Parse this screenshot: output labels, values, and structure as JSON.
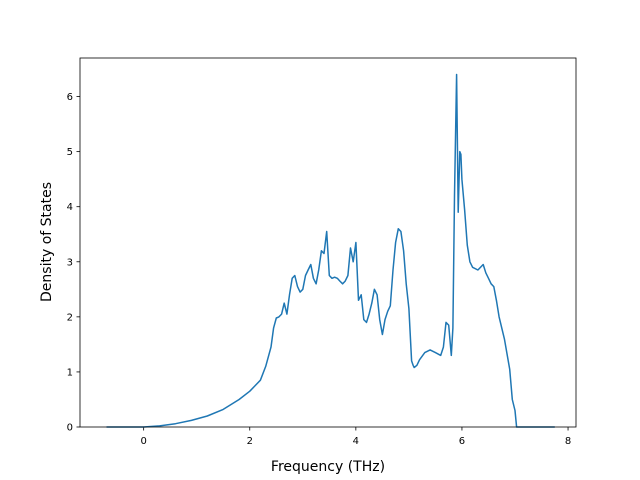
{
  "chart_data": {
    "type": "line",
    "title": "",
    "xlabel": "Frequency (THz)",
    "ylabel": "Density of States",
    "xlim": [
      -1.2,
      8.15
    ],
    "ylim": [
      0,
      6.7
    ],
    "xticks": [
      0,
      2,
      4,
      6,
      8
    ],
    "yticks": [
      0,
      1,
      2,
      3,
      4,
      5,
      6
    ],
    "grid": false,
    "legend": "none",
    "line_color": "#1f77b4",
    "series": [
      {
        "x": [
          -0.7,
          0.0,
          0.3,
          0.6,
          0.9,
          1.2,
          1.5,
          1.8,
          2.0,
          2.2,
          2.3,
          2.4,
          2.45,
          2.5,
          2.55,
          2.6,
          2.65,
          2.7,
          2.75,
          2.8,
          2.85,
          2.9,
          2.95,
          3.0,
          3.05,
          3.1,
          3.15,
          3.2,
          3.25,
          3.3,
          3.35,
          3.4,
          3.45,
          3.5,
          3.55,
          3.6,
          3.65,
          3.7,
          3.75,
          3.8,
          3.85,
          3.9,
          3.95,
          4.0,
          4.05,
          4.1,
          4.15,
          4.2,
          4.25,
          4.3,
          4.35,
          4.4,
          4.45,
          4.5,
          4.55,
          4.6,
          4.65,
          4.7,
          4.75,
          4.8,
          4.85,
          4.9,
          4.95,
          5.0,
          5.05,
          5.08,
          5.1,
          5.15,
          5.2,
          5.3,
          5.4,
          5.5,
          5.6,
          5.65,
          5.7,
          5.75,
          5.8,
          5.83,
          5.86,
          5.9,
          5.93,
          5.96,
          5.98,
          6.0,
          6.05,
          6.1,
          6.15,
          6.2,
          6.3,
          6.4,
          6.45,
          6.5,
          6.55,
          6.6,
          6.65,
          6.7,
          6.8,
          6.9,
          6.95,
          7.0,
          7.03,
          7.06,
          7.1,
          7.4,
          7.75
        ],
        "y": [
          0.0,
          0.0,
          0.02,
          0.06,
          0.12,
          0.2,
          0.32,
          0.5,
          0.65,
          0.85,
          1.1,
          1.45,
          1.8,
          1.98,
          2.0,
          2.05,
          2.25,
          2.05,
          2.4,
          2.7,
          2.75,
          2.55,
          2.45,
          2.5,
          2.75,
          2.85,
          2.95,
          2.7,
          2.6,
          2.85,
          3.2,
          3.15,
          3.55,
          2.75,
          2.7,
          2.72,
          2.7,
          2.65,
          2.6,
          2.65,
          2.75,
          3.25,
          3.0,
          3.35,
          2.3,
          2.4,
          1.95,
          1.9,
          2.05,
          2.25,
          2.5,
          2.4,
          1.95,
          1.68,
          1.95,
          2.1,
          2.2,
          2.85,
          3.35,
          3.6,
          3.55,
          3.2,
          2.6,
          2.15,
          1.2,
          1.12,
          1.08,
          1.12,
          1.22,
          1.35,
          1.4,
          1.35,
          1.3,
          1.45,
          1.9,
          1.85,
          1.3,
          1.8,
          4.2,
          6.4,
          3.9,
          5.0,
          4.95,
          4.5,
          3.95,
          3.3,
          3.0,
          2.9,
          2.85,
          2.95,
          2.8,
          2.7,
          2.6,
          2.55,
          2.3,
          2.0,
          1.6,
          1.05,
          0.5,
          0.3,
          0.0,
          0.0,
          0.0,
          0.0,
          0.0
        ]
      }
    ]
  }
}
